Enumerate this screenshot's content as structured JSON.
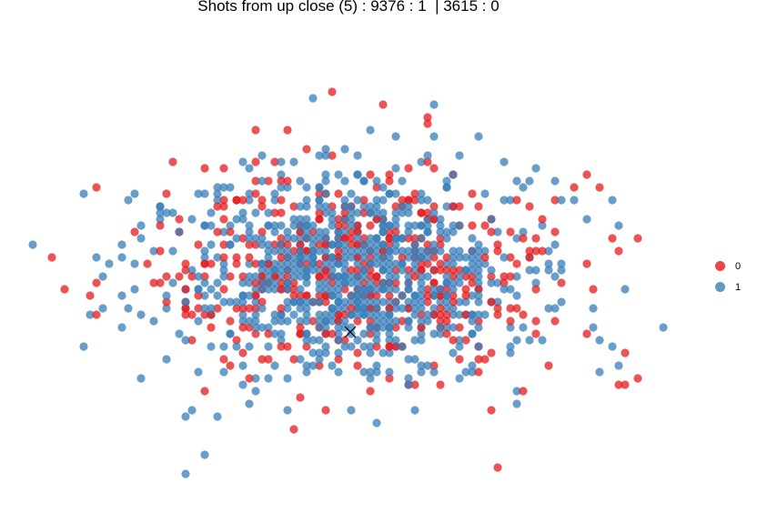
{
  "chart_data": {
    "type": "scatter",
    "title": "Shots from up close (5) : 9376 : 1  | 3615 : 0",
    "xlabel": "",
    "ylabel": "",
    "grid": false,
    "axes_visible": false,
    "legend_placement": "right",
    "series": [
      {
        "name": "0",
        "color": "#E41A1C"
      },
      {
        "name": "1",
        "color": "#377EB8"
      }
    ],
    "marker_color": "#000000"
  },
  "legend": [
    {
      "label": "0",
      "color": "#E41A1C"
    },
    {
      "label": "1",
      "color": "#377EB8"
    }
  ]
}
